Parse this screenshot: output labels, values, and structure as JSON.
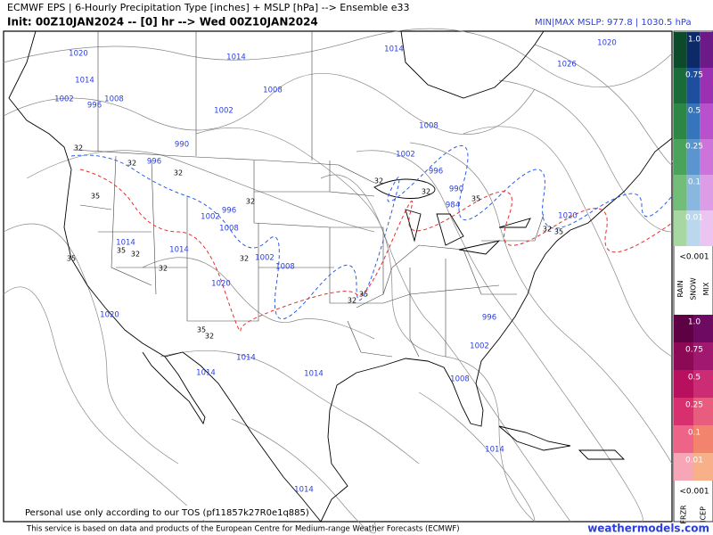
{
  "header": {
    "title": "ECMWF EPS | 6-Hourly Precipitation Type [inches] + MSLP [hPa] --> Ensemble e33",
    "subtitle": "Init: 00Z10JAN2024 -- [0] hr --> Wed 00Z10JAN2024",
    "minmax": "MIN|MAX MSLP: 977.8 | 1030.5 hPa"
  },
  "legend": {
    "upper": {
      "levels": [
        "1.0",
        "0.75",
        "0.5",
        "0.25",
        "0.1",
        "0.01"
      ],
      "trace": "<0.001",
      "columns": [
        {
          "name": "RAIN",
          "colors": [
            "#0c4a2a",
            "#1a6b37",
            "#2c8744",
            "#4aa35a",
            "#72bd78",
            "#a8d8a2"
          ]
        },
        {
          "name": "SNOW",
          "colors": [
            "#0d2a68",
            "#1d4f9e",
            "#3674bc",
            "#5b95cf",
            "#88b7df",
            "#bad7ee"
          ]
        },
        {
          "name": "MIX",
          "colors": [
            "#6b1a88",
            "#9a30b2",
            "#b950cc",
            "#cc74da",
            "#dc9ce6",
            "#ecc4f1"
          ]
        }
      ]
    },
    "lower": {
      "levels": [
        "1.0",
        "0.75",
        "0.5",
        "0.25",
        "0.1",
        "0.01"
      ],
      "trace": "<0.001",
      "columns": [
        {
          "name": "FRZR",
          "colors": [
            "#5e0044",
            "#8c0a55",
            "#b8105e",
            "#d8306e",
            "#ee6488",
            "#f6a6b6"
          ]
        },
        {
          "name": "ICEP",
          "colors": [
            "#6e0a62",
            "#a0186f",
            "#cc2c74",
            "#e85c7e",
            "#f2846e",
            "#f8b088"
          ]
        }
      ]
    }
  },
  "map": {
    "isobar_labels": [
      "1020",
      "1014",
      "1002",
      "1008",
      "996",
      "1014",
      "1008",
      "1002",
      "990",
      "996",
      "1014",
      "1008",
      "1002",
      "996",
      "990",
      "984",
      "1020",
      "1026",
      "1020",
      "1002",
      "996",
      "1008",
      "1014",
      "1014",
      "1002",
      "1008",
      "1020",
      "1020",
      "996",
      "1002",
      "1014",
      "1014",
      "1014",
      "1008",
      "1014",
      "1014"
    ],
    "freezing_labels": [
      "32",
      "32",
      "32",
      "35",
      "32",
      "35",
      "32",
      "35",
      "32",
      "32",
      "35",
      "32",
      "35",
      "32",
      "32",
      "32",
      "35",
      "32",
      "35"
    ]
  },
  "footer": {
    "tos": "Personal use only according to our TOS (pf11857k27R0e1q885)",
    "attribution": "This service is based on data and products of the European Centre for Medium-range Weather Forecasts (ECMWF)",
    "site": "weathermodels.com"
  }
}
